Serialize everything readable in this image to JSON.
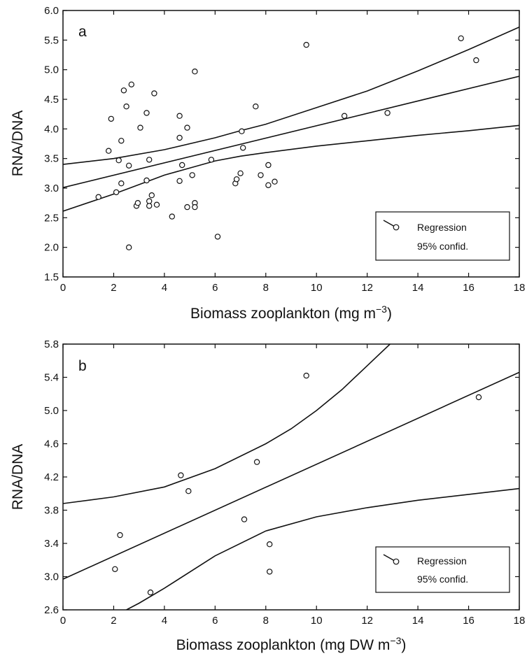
{
  "chart_data": [
    {
      "type": "scatter",
      "panel_label": "a",
      "xlabel": "Biomass zooplankton (mg m",
      "xlabel_sup": "−3",
      "xlabel_suffix": ")",
      "ylabel": "RNA/DNA",
      "xlim": [
        0,
        18
      ],
      "ylim": [
        1.5,
        6.0
      ],
      "xticks": [
        0,
        2,
        4,
        6,
        8,
        10,
        12,
        14,
        16,
        18
      ],
      "yticks": [
        "1.5",
        "2.0",
        "2.5",
        "3.0",
        "3.5",
        "4.0",
        "4.5",
        "5.0",
        "5.5",
        "6.0"
      ],
      "grid": false,
      "legend": {
        "placement": "bottom-right",
        "entries": [
          "Regression",
          "95% confid."
        ]
      },
      "points": [
        [
          1.4,
          2.85
        ],
        [
          1.8,
          3.63
        ],
        [
          1.9,
          4.17
        ],
        [
          2.1,
          2.93
        ],
        [
          2.2,
          3.47
        ],
        [
          2.3,
          3.08
        ],
        [
          2.3,
          3.8
        ],
        [
          2.4,
          4.65
        ],
        [
          2.5,
          4.38
        ],
        [
          2.6,
          2.0
        ],
        [
          2.6,
          3.38
        ],
        [
          2.7,
          4.75
        ],
        [
          2.9,
          2.7
        ],
        [
          2.95,
          2.75
        ],
        [
          3.05,
          4.02
        ],
        [
          3.3,
          4.27
        ],
        [
          3.3,
          3.13
        ],
        [
          3.4,
          3.48
        ],
        [
          3.4,
          2.78
        ],
        [
          3.4,
          2.7
        ],
        [
          3.5,
          2.88
        ],
        [
          3.6,
          4.6
        ],
        [
          3.7,
          2.72
        ],
        [
          4.3,
          2.52
        ],
        [
          4.6,
          3.85
        ],
        [
          4.6,
          4.22
        ],
        [
          4.6,
          3.12
        ],
        [
          4.7,
          3.39
        ],
        [
          4.9,
          4.02
        ],
        [
          4.9,
          2.68
        ],
        [
          5.1,
          3.22
        ],
        [
          5.2,
          2.75
        ],
        [
          5.2,
          2.68
        ],
        [
          5.2,
          4.97
        ],
        [
          5.85,
          3.48
        ],
        [
          6.1,
          2.18
        ],
        [
          6.8,
          3.08
        ],
        [
          6.85,
          3.15
        ],
        [
          7.0,
          3.25
        ],
        [
          7.05,
          3.96
        ],
        [
          7.1,
          3.68
        ],
        [
          7.6,
          4.38
        ],
        [
          7.8,
          3.22
        ],
        [
          8.1,
          3.39
        ],
        [
          8.1,
          3.05
        ],
        [
          8.35,
          3.11
        ],
        [
          9.6,
          5.42
        ],
        [
          11.1,
          4.22
        ],
        [
          12.8,
          4.27
        ],
        [
          15.7,
          5.53
        ],
        [
          16.3,
          5.16
        ]
      ],
      "regression": {
        "x": [
          0,
          18
        ],
        "y": [
          3.01,
          4.89
        ]
      },
      "conf_upper": {
        "x": [
          0,
          2,
          4,
          6,
          7,
          8,
          10,
          12,
          14,
          16,
          18
        ],
        "y": [
          3.4,
          3.5,
          3.65,
          3.85,
          3.97,
          4.08,
          4.36,
          4.64,
          4.98,
          5.34,
          5.72
        ]
      },
      "conf_lower": {
        "x": [
          0,
          2,
          4,
          6,
          7,
          8,
          10,
          12,
          14,
          16,
          18
        ],
        "y": [
          2.61,
          2.9,
          3.22,
          3.46,
          3.54,
          3.6,
          3.71,
          3.8,
          3.89,
          3.97,
          4.06
        ]
      }
    },
    {
      "type": "scatter",
      "panel_label": "b",
      "xlabel": "Biomass zooplankton (mg DW m",
      "xlabel_sup": "−3",
      "xlabel_suffix": ")",
      "ylabel": "RNA/DNA",
      "xlim": [
        0,
        18
      ],
      "ylim": [
        2.6,
        5.8
      ],
      "xticks": [
        0,
        2,
        4,
        6,
        8,
        10,
        12,
        14,
        16,
        18
      ],
      "yticks": [
        "2.6",
        "3.0",
        "3.4",
        "3.8",
        "4.2",
        "4.6",
        "5.0",
        "5.4",
        "5.8"
      ],
      "grid": false,
      "legend": {
        "placement": "bottom-right",
        "entries": [
          "Regression",
          "95% confid."
        ]
      },
      "points": [
        [
          2.05,
          3.09
        ],
        [
          2.25,
          3.5
        ],
        [
          3.45,
          2.81
        ],
        [
          4.65,
          4.22
        ],
        [
          4.95,
          4.03
        ],
        [
          7.15,
          3.69
        ],
        [
          7.65,
          4.38
        ],
        [
          8.15,
          3.39
        ],
        [
          8.15,
          3.06
        ],
        [
          9.6,
          5.42
        ],
        [
          16.4,
          5.16
        ]
      ],
      "regression": {
        "x": [
          0,
          18
        ],
        "y": [
          2.97,
          5.46
        ]
      },
      "conf_upper": {
        "x": [
          0,
          2,
          4,
          6,
          8,
          9,
          10,
          11,
          12,
          12.9
        ],
        "y": [
          3.88,
          3.96,
          4.08,
          4.3,
          4.6,
          4.78,
          5.0,
          5.25,
          5.54,
          5.8
        ]
      },
      "conf_lower": {
        "x": [
          2.5,
          3,
          4,
          6,
          8,
          10,
          12,
          14,
          16,
          18
        ],
        "y": [
          2.6,
          2.68,
          2.86,
          3.25,
          3.55,
          3.72,
          3.83,
          3.92,
          3.99,
          4.06
        ]
      }
    }
  ]
}
